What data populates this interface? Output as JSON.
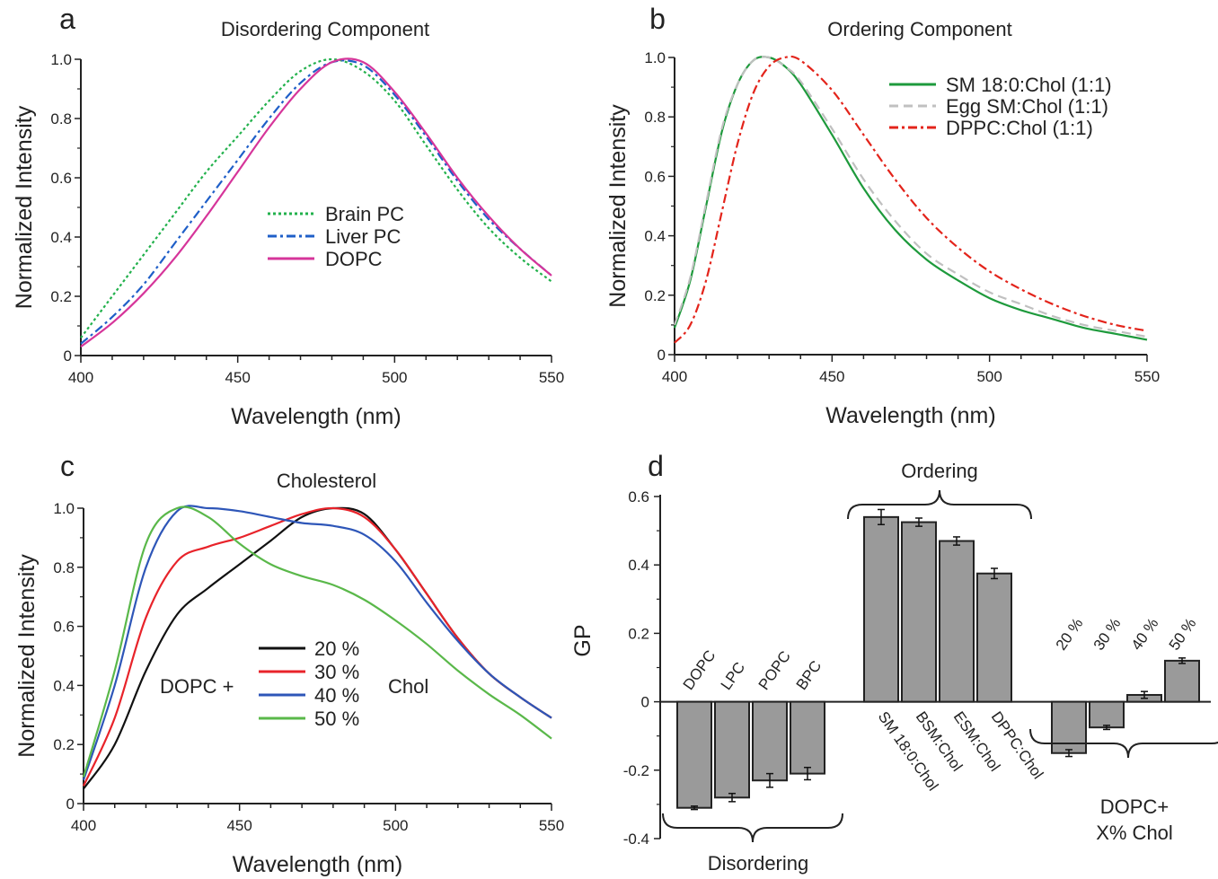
{
  "chart_data": [
    {
      "panel": "a",
      "type": "line",
      "title": "Disordering Component",
      "xlabel": "Wavelength (nm)",
      "ylabel": "Normalized Intensity",
      "xlim": [
        400,
        550
      ],
      "ylim": [
        0,
        1.0
      ],
      "xticks": [
        400,
        450,
        500,
        550
      ],
      "xtick_labels": [
        "400",
        "450",
        "500",
        "550"
      ],
      "yticks": [
        0,
        0.2,
        0.4,
        0.6,
        0.8,
        1.0
      ],
      "ytick_labels": [
        "0",
        "0.2",
        "0.4",
        "0.6",
        "0.8",
        "1.0"
      ],
      "legend": "center",
      "series": [
        {
          "name": "Brain PC",
          "color": "#22b14c",
          "dash": "dotted",
          "x": [
            400,
            410,
            420,
            430,
            440,
            450,
            460,
            470,
            480,
            490,
            500,
            510,
            520,
            530,
            540,
            550
          ],
          "y": [
            0.06,
            0.2,
            0.34,
            0.48,
            0.62,
            0.74,
            0.86,
            0.96,
            1.0,
            0.96,
            0.86,
            0.71,
            0.56,
            0.43,
            0.33,
            0.25
          ]
        },
        {
          "name": "Liver PC",
          "color": "#1f5fc8",
          "dash": "dashdot",
          "x": [
            400,
            410,
            420,
            430,
            440,
            450,
            460,
            470,
            480,
            490,
            500,
            510,
            520,
            530,
            540,
            550
          ],
          "y": [
            0.04,
            0.13,
            0.24,
            0.38,
            0.52,
            0.66,
            0.8,
            0.92,
            0.99,
            0.98,
            0.88,
            0.74,
            0.59,
            0.46,
            0.36,
            0.27
          ]
        },
        {
          "name": "DOPC",
          "color": "#d6359a",
          "dash": "solid",
          "x": [
            400,
            410,
            420,
            430,
            440,
            450,
            460,
            470,
            480,
            490,
            500,
            510,
            520,
            530,
            540,
            550
          ],
          "y": [
            0.03,
            0.11,
            0.21,
            0.33,
            0.47,
            0.62,
            0.77,
            0.9,
            0.99,
            0.99,
            0.89,
            0.75,
            0.6,
            0.47,
            0.36,
            0.27
          ]
        }
      ]
    },
    {
      "panel": "b",
      "type": "line",
      "title": "Ordering Component",
      "xlabel": "Wavelength (nm)",
      "ylabel": "Normalized Intensity",
      "xlim": [
        400,
        550
      ],
      "ylim": [
        0,
        1.0
      ],
      "xticks": [
        400,
        450,
        500,
        550
      ],
      "xtick_labels": [
        "400",
        "450",
        "500",
        "550"
      ],
      "yticks": [
        0,
        0.2,
        0.4,
        0.6,
        0.8,
        1.0
      ],
      "ytick_labels": [
        "0",
        "0.2",
        "0.4",
        "0.6",
        "0.8",
        "1.0"
      ],
      "legend": "top-right",
      "series": [
        {
          "name": "SM 18:0:Chol (1:1)",
          "color": "#1e9a3c",
          "dash": "solid",
          "x": [
            400,
            405,
            410,
            415,
            420,
            425,
            430,
            435,
            440,
            450,
            460,
            470,
            480,
            490,
            500,
            510,
            520,
            530,
            540,
            550
          ],
          "y": [
            0.09,
            0.25,
            0.5,
            0.75,
            0.91,
            0.99,
            1.0,
            0.97,
            0.91,
            0.74,
            0.56,
            0.42,
            0.32,
            0.25,
            0.19,
            0.15,
            0.12,
            0.09,
            0.07,
            0.05
          ]
        },
        {
          "name": "Egg SM:Chol (1:1)",
          "color": "#c0c0c0",
          "dash": "dashed",
          "x": [
            400,
            405,
            410,
            415,
            420,
            425,
            430,
            435,
            440,
            450,
            460,
            470,
            480,
            490,
            500,
            510,
            520,
            530,
            540,
            550
          ],
          "y": [
            0.1,
            0.26,
            0.51,
            0.76,
            0.91,
            0.99,
            1.0,
            0.97,
            0.92,
            0.76,
            0.59,
            0.45,
            0.34,
            0.27,
            0.21,
            0.17,
            0.13,
            0.1,
            0.08,
            0.06
          ]
        },
        {
          "name": "DPPC:Chol (1:1)",
          "color": "#e3241b",
          "dash": "dashdot",
          "x": [
            400,
            405,
            410,
            415,
            420,
            425,
            430,
            435,
            440,
            450,
            460,
            470,
            480,
            490,
            500,
            510,
            520,
            530,
            540,
            550
          ],
          "y": [
            0.04,
            0.1,
            0.25,
            0.48,
            0.71,
            0.88,
            0.97,
            1.0,
            0.99,
            0.89,
            0.74,
            0.59,
            0.46,
            0.36,
            0.28,
            0.22,
            0.17,
            0.13,
            0.1,
            0.08
          ]
        }
      ]
    },
    {
      "panel": "c",
      "type": "line",
      "title": "Cholesterol",
      "xlabel": "Wavelength (nm)",
      "ylabel": "Normalized Intensity",
      "xlim": [
        400,
        550
      ],
      "ylim": [
        0,
        1.0
      ],
      "xticks": [
        400,
        450,
        500,
        550
      ],
      "xtick_labels": [
        "400",
        "450",
        "500",
        "550"
      ],
      "yticks": [
        0,
        0.2,
        0.4,
        0.6,
        0.8,
        1.0
      ],
      "ytick_labels": [
        "0",
        "0.2",
        "0.4",
        "0.6",
        "0.8",
        "1.0"
      ],
      "legend": "center",
      "legend_prefix": "DOPC +",
      "legend_suffix": "Chol",
      "series": [
        {
          "name": "20 %",
          "color": "#111111",
          "dash": "solid",
          "x": [
            400,
            410,
            420,
            430,
            440,
            450,
            460,
            470,
            480,
            490,
            500,
            510,
            520,
            530,
            540,
            550
          ],
          "y": [
            0.05,
            0.2,
            0.45,
            0.64,
            0.73,
            0.81,
            0.89,
            0.97,
            1.0,
            0.98,
            0.86,
            0.71,
            0.56,
            0.44,
            0.36,
            0.29
          ]
        },
        {
          "name": "30 %",
          "color": "#e8232a",
          "dash": "solid",
          "x": [
            400,
            410,
            420,
            430,
            440,
            450,
            460,
            470,
            480,
            490,
            500,
            510,
            520,
            530,
            540,
            550
          ],
          "y": [
            0.06,
            0.29,
            0.63,
            0.82,
            0.87,
            0.9,
            0.94,
            0.98,
            1.0,
            0.97,
            0.86,
            0.71,
            0.56,
            0.44,
            0.36,
            0.29
          ]
        },
        {
          "name": "40 %",
          "color": "#2e56b8",
          "dash": "solid",
          "x": [
            400,
            410,
            420,
            430,
            440,
            450,
            460,
            470,
            480,
            490,
            500,
            510,
            520,
            530,
            540,
            550
          ],
          "y": [
            0.08,
            0.4,
            0.8,
            0.99,
            1.0,
            0.99,
            0.97,
            0.95,
            0.94,
            0.91,
            0.82,
            0.68,
            0.55,
            0.44,
            0.36,
            0.29
          ]
        },
        {
          "name": "50 %",
          "color": "#5ab84a",
          "dash": "solid",
          "x": [
            400,
            410,
            420,
            430,
            440,
            450,
            460,
            470,
            480,
            490,
            500,
            510,
            520,
            530,
            540,
            550
          ],
          "y": [
            0.09,
            0.45,
            0.88,
            1.0,
            0.97,
            0.88,
            0.81,
            0.77,
            0.74,
            0.69,
            0.62,
            0.54,
            0.45,
            0.37,
            0.3,
            0.22
          ]
        }
      ]
    },
    {
      "panel": "d",
      "type": "bar",
      "ylabel": "GP",
      "ylim": [
        -0.4,
        0.6
      ],
      "yticks": [
        -0.4,
        -0.2,
        0,
        0.2,
        0.4,
        0.6
      ],
      "ytick_labels": [
        "-0.4",
        "-0.2",
        "0",
        "0.2",
        "0.4",
        "0.6"
      ],
      "bar_color": "#9a9a9a",
      "groups": [
        {
          "label_lines": [
            "Disordering"
          ],
          "brace": "below",
          "categories": [
            "DOPC",
            "LPC",
            "POPC",
            "BPC"
          ],
          "values": [
            -0.31,
            -0.28,
            -0.23,
            -0.21
          ],
          "errors": [
            0.005,
            0.012,
            0.02,
            0.018
          ]
        },
        {
          "label_lines": [
            "Ordering"
          ],
          "brace": "above",
          "categories": [
            "SM 18:0:Chol",
            "BSM:Chol",
            "ESM:Chol",
            "DPPC:Chol"
          ],
          "values": [
            0.54,
            0.525,
            0.47,
            0.375
          ],
          "errors": [
            0.022,
            0.012,
            0.012,
            0.015
          ]
        },
        {
          "label_lines": [
            "DOPC+",
            "X% Chol"
          ],
          "brace": "below",
          "categories": [
            "20 %",
            "30 %",
            "40 %",
            "50 %"
          ],
          "values": [
            -0.15,
            -0.075,
            0.02,
            0.12
          ],
          "errors": [
            0.01,
            0.006,
            0.01,
            0.008
          ]
        }
      ]
    }
  ],
  "panel_letters": [
    "a",
    "b",
    "c",
    "d"
  ]
}
